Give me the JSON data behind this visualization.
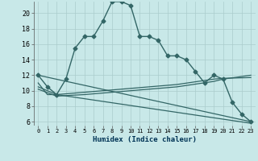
{
  "xlabel": "Humidex (Indice chaleur)",
  "x_ticks": [
    0,
    1,
    2,
    3,
    4,
    5,
    6,
    7,
    8,
    9,
    10,
    11,
    12,
    13,
    14,
    15,
    16,
    17,
    18,
    19,
    20,
    21,
    22,
    23
  ],
  "ylim": [
    5.5,
    21.5
  ],
  "yticks": [
    6,
    8,
    10,
    12,
    14,
    16,
    18,
    20
  ],
  "background_color": "#c8e8e8",
  "grid_color": "#aacccc",
  "line_color": "#336666",
  "series": [
    {
      "x": [
        0,
        1,
        2,
        3,
        4,
        5,
        6,
        7,
        8,
        9,
        10,
        11,
        12,
        13,
        14,
        15,
        16,
        17,
        18,
        19,
        20,
        21,
        22,
        23
      ],
      "y": [
        12,
        10.5,
        9.5,
        11.5,
        15.5,
        17.0,
        17.0,
        19.0,
        21.5,
        21.5,
        21.0,
        17.0,
        17.0,
        16.5,
        14.5,
        14.5,
        14.0,
        12.5,
        11.0,
        12.0,
        11.5,
        8.5,
        7.0,
        6.0
      ],
      "marker": "D",
      "markersize": 2.5,
      "linewidth": 1.0
    },
    {
      "x": [
        0,
        23
      ],
      "y": [
        12.0,
        6.0
      ],
      "marker": null,
      "markersize": 0,
      "linewidth": 0.9
    },
    {
      "x": [
        0,
        1,
        2,
        23
      ],
      "y": [
        11.0,
        9.5,
        9.5,
        5.8
      ],
      "marker": null,
      "markersize": 0,
      "linewidth": 0.9
    },
    {
      "x": [
        0,
        2,
        5,
        10,
        15,
        19,
        20,
        23
      ],
      "y": [
        10.5,
        9.5,
        9.8,
        10.3,
        10.8,
        11.5,
        11.6,
        11.7
      ],
      "marker": null,
      "markersize": 0,
      "linewidth": 0.9
    },
    {
      "x": [
        0,
        2,
        5,
        10,
        15,
        19,
        20,
        23
      ],
      "y": [
        10.2,
        9.3,
        9.5,
        10.0,
        10.5,
        11.2,
        11.5,
        12.0
      ],
      "marker": null,
      "markersize": 0,
      "linewidth": 0.9
    }
  ]
}
